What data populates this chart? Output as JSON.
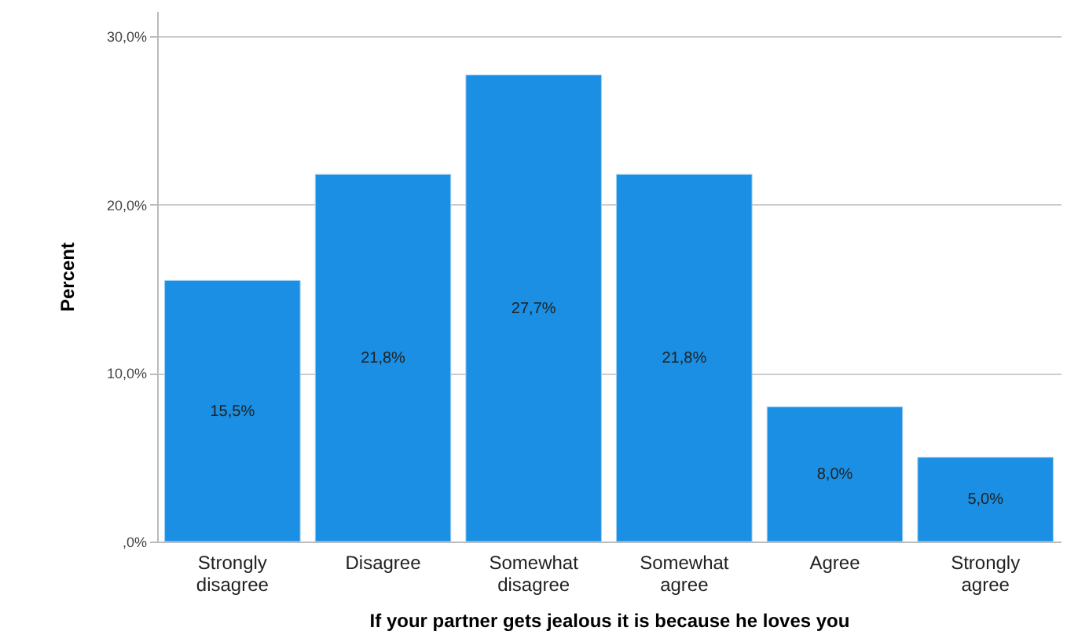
{
  "chart_data": {
    "type": "bar",
    "xlabel": "If your partner gets jealous it is because he loves you",
    "ylabel": "Percent",
    "categories": [
      "Strongly disagree",
      "Disagree",
      "Somewhat disagree",
      "Somewhat agree",
      "Agree",
      "Strongly agree"
    ],
    "values": [
      15.5,
      21.8,
      27.7,
      21.8,
      8.0,
      5.0
    ],
    "value_labels": [
      "15,5%",
      "21,8%",
      "27,7%",
      "21,8%",
      "8,0%",
      "5,0%"
    ],
    "color": "#1a8fe3",
    "ylim": [
      0,
      31.5
    ],
    "yticks": [
      {
        "value": 0,
        "label": ",0%"
      },
      {
        "value": 10,
        "label": "10,0%"
      },
      {
        "value": 20,
        "label": "20,0%"
      },
      {
        "value": 30,
        "label": "30,0%"
      }
    ],
    "grid": "y"
  }
}
